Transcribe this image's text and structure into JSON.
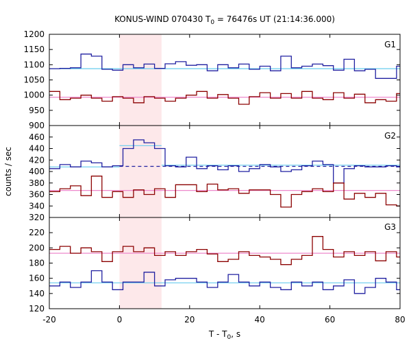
{
  "chart_data": {
    "type": "line",
    "title": "KONUS-WIND 070430 T",
    "title_sub": "0",
    "title_rest": " = 76476s UT (21:14:36.000)",
    "xlabel": "T - T",
    "xlabel_sub": "0",
    "xlabel_rest": ", s",
    "ylabel": "counts / sec",
    "xlim": [
      -20,
      80
    ],
    "x_ticks": [
      -20,
      0,
      20,
      40,
      60,
      80
    ],
    "x_tick_labels": [
      "-20",
      "0",
      "20",
      "40",
      "60",
      "80"
    ],
    "highlight_interval": [
      0,
      12
    ],
    "colors": {
      "high_series": "#1f1fa0",
      "low_series": "#8b0000",
      "high_fit": "#66ccee",
      "low_fit": "#ee88cc",
      "highlight": "#fde8ea",
      "dashed": "#1f1fa0"
    },
    "panels": [
      {
        "label": "G1",
        "ylim": [
          900,
          1200
        ],
        "y_ticks": [
          900,
          950,
          1000,
          1050,
          1100,
          1150,
          1200
        ],
        "y_tick_labels": [
          "900",
          "950",
          "1000",
          "1050",
          "1100",
          "1150",
          "1200"
        ],
        "series": [
          {
            "role": "high",
            "x": [
              -20,
              -17,
              -14,
              -11,
              -8,
              -5,
              -2,
              1,
              4,
              7,
              10,
              13,
              16,
              19,
              22,
              25,
              28,
              31,
              34,
              37,
              40,
              43,
              46,
              49,
              52,
              55,
              58,
              61,
              64,
              67,
              70,
              73,
              76,
              79,
              82
            ],
            "values": [
              1087,
              1088,
              1090,
              1135,
              1128,
              1085,
              1082,
              1100,
              1090,
              1102,
              1088,
              1103,
              1110,
              1098,
              1100,
              1080,
              1100,
              1090,
              1102,
              1085,
              1095,
              1080,
              1128,
              1090,
              1095,
              1102,
              1097,
              1082,
              1118,
              1080,
              1085,
              1055,
              1055,
              1095,
              1078
            ]
          },
          {
            "role": "low",
            "x": [
              -20,
              -17,
              -14,
              -11,
              -8,
              -5,
              -2,
              1,
              4,
              7,
              10,
              13,
              16,
              19,
              22,
              25,
              28,
              31,
              34,
              37,
              40,
              43,
              46,
              49,
              52,
              55,
              58,
              61,
              64,
              67,
              70,
              73,
              76,
              79,
              82
            ],
            "values": [
              1012,
              985,
              990,
              1000,
              990,
              980,
              995,
              990,
              975,
              995,
              990,
              980,
              990,
              1000,
              1012,
              990,
              1002,
              990,
              970,
              995,
              1008,
              990,
              1005,
              990,
              1012,
              990,
              985,
              1008,
              990,
              1003,
              975,
              985,
              980,
              1005,
              985
            ]
          }
        ],
        "fits": [
          {
            "role": "high",
            "value": 1087,
            "x_range": [
              -20,
              80
            ]
          },
          {
            "role": "low",
            "value": 993,
            "x_range": [
              -20,
              80
            ]
          }
        ]
      },
      {
        "label": "G2",
        "ylim": [
          320,
          480
        ],
        "y_ticks": [
          320,
          340,
          360,
          380,
          400,
          420,
          440,
          460
        ],
        "y_tick_labels": [
          "320",
          "340",
          "360",
          "380",
          "400",
          "420",
          "440",
          "460"
        ],
        "series": [
          {
            "role": "high",
            "x": [
              -20,
              -17,
              -14,
              -11,
              -8,
              -5,
              -2,
              1,
              4,
              7,
              10,
              13,
              16,
              19,
              22,
              25,
              28,
              31,
              34,
              37,
              40,
              43,
              46,
              49,
              52,
              55,
              58,
              61,
              64,
              67,
              70,
              73,
              76,
              79,
              82
            ],
            "values": [
              405,
              412,
              408,
              418,
              415,
              408,
              410,
              440,
              455,
              450,
              440,
              410,
              408,
              425,
              405,
              410,
              403,
              410,
              400,
              405,
              412,
              408,
              400,
              403,
              410,
              418,
              412,
              380,
              405,
              410,
              408,
              408,
              410,
              408,
              410
            ]
          },
          {
            "role": "low",
            "x": [
              -20,
              -17,
              -14,
              -11,
              -8,
              -5,
              -2,
              1,
              4,
              7,
              10,
              13,
              16,
              19,
              22,
              25,
              28,
              31,
              34,
              37,
              40,
              43,
              46,
              49,
              52,
              55,
              58,
              61,
              64,
              67,
              70,
              73,
              76,
              79,
              82
            ],
            "values": [
              365,
              370,
              375,
              358,
              392,
              355,
              365,
              355,
              368,
              360,
              370,
              355,
              377,
              377,
              365,
              378,
              368,
              370,
              362,
              368,
              368,
              360,
              338,
              360,
              365,
              370,
              365,
              380,
              352,
              362,
              355,
              362,
              342,
              340,
              345
            ]
          }
        ],
        "fits": [
          {
            "role": "high",
            "value": 445,
            "x_range": [
              0,
              12
            ]
          },
          {
            "role": "high",
            "value": 408,
            "x_range": [
              -20,
              0
            ]
          },
          {
            "role": "high",
            "value": 411,
            "x_range": [
              12,
              80
            ]
          },
          {
            "role": "low",
            "value": 367,
            "x_range": [
              -20,
              80
            ]
          }
        ],
        "dashed": {
          "value": 409,
          "x_range": [
            0,
            80
          ]
        }
      },
      {
        "label": "G3",
        "ylim": [
          120,
          240
        ],
        "y_ticks": [
          120,
          140,
          160,
          180,
          200,
          220
        ],
        "y_tick_labels": [
          "120",
          "140",
          "160",
          "180",
          "200",
          "220"
        ],
        "series": [
          {
            "role": "high",
            "x": [
              -20,
              -17,
              -14,
              -11,
              -8,
              -5,
              -2,
              1,
              4,
              7,
              10,
              13,
              16,
              19,
              22,
              25,
              28,
              31,
              34,
              37,
              40,
              43,
              46,
              49,
              52,
              55,
              58,
              61,
              64,
              67,
              70,
              73,
              76,
              79,
              82
            ],
            "values": [
              150,
              155,
              148,
              155,
              170,
              155,
              145,
              155,
              155,
              168,
              150,
              158,
              160,
              160,
              155,
              148,
              155,
              165,
              155,
              150,
              155,
              148,
              145,
              155,
              150,
              155,
              145,
              150,
              158,
              140,
              148,
              160,
              155,
              145,
              168
            ]
          },
          {
            "role": "low",
            "x": [
              -20,
              -17,
              -14,
              -11,
              -8,
              -5,
              -2,
              1,
              4,
              7,
              10,
              13,
              16,
              19,
              22,
              25,
              28,
              31,
              34,
              37,
              40,
              43,
              46,
              49,
              52,
              55,
              58,
              61,
              64,
              67,
              70,
              73,
              76,
              79,
              82
            ],
            "values": [
              198,
              202,
              193,
              200,
              195,
              182,
              195,
              202,
              195,
              200,
              190,
              195,
              190,
              195,
              198,
              192,
              182,
              185,
              195,
              190,
              188,
              185,
              178,
              185,
              190,
              215,
              198,
              188,
              195,
              190,
              195,
              183,
              195,
              188,
              178
            ]
          }
        ],
        "fits": [
          {
            "role": "high",
            "value": 154,
            "x_range": [
              -20,
              80
            ]
          },
          {
            "role": "low",
            "value": 193,
            "x_range": [
              -20,
              80
            ]
          }
        ]
      }
    ]
  }
}
